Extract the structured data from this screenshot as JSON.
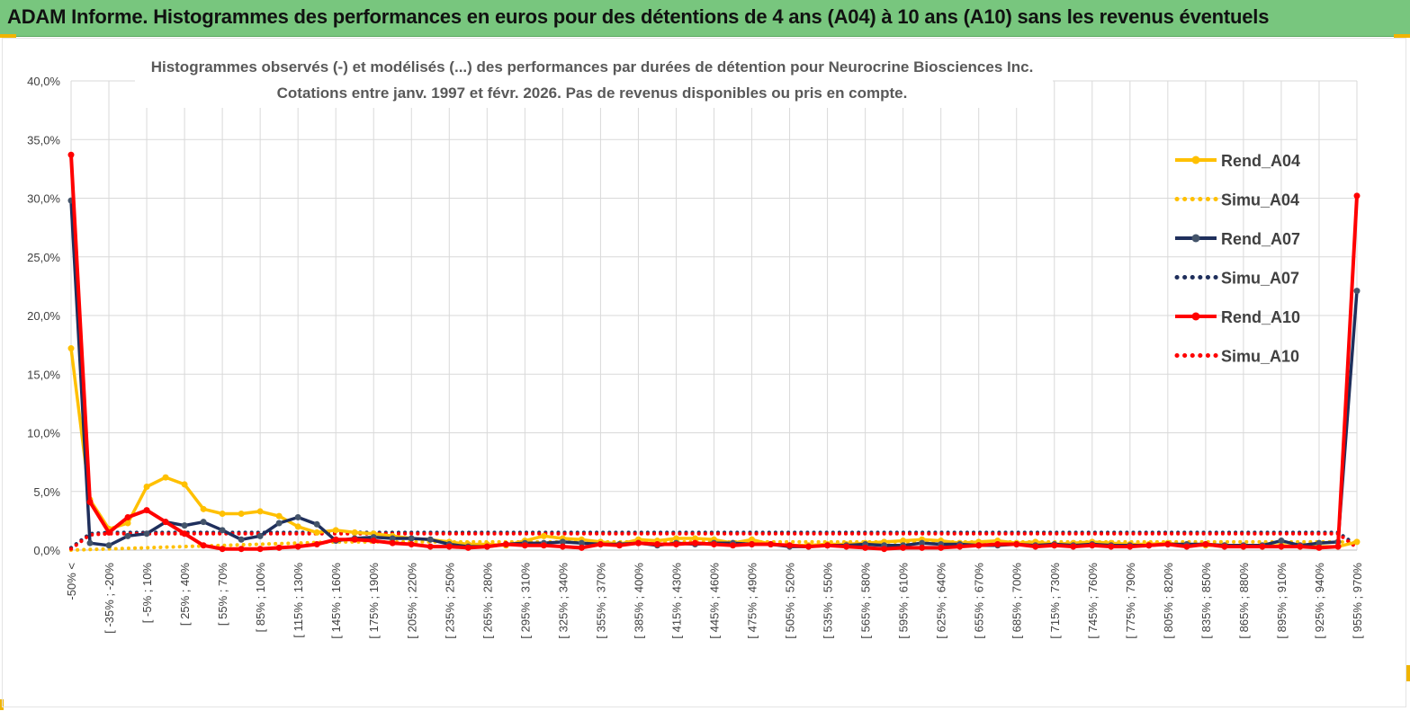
{
  "header": {
    "title": "ADAM Informe. Histogrammes des performances en euros pour des détentions de 4 ans (A04) à 10 ans (A10) sans les revenus éventuels"
  },
  "colors": {
    "banner": "#78c67e",
    "a04": "#ffc000",
    "a07": "#1f2f5c",
    "a10": "#ff0000",
    "grid": "#d9d9d9",
    "accent": "#f0b400"
  },
  "chart_data": {
    "type": "line",
    "title_lines": [
      "Histogrammes observés (-) et modélisés (...) des performances par durées de détention pour Neurocrine Biosciences Inc.",
      "Cotations entre janv. 1997 et févr. 2026. Pas de revenus disponibles ou pris en compte."
    ],
    "ylim": [
      0,
      40
    ],
    "yticks": [
      "0,0%",
      "5,0%",
      "10,0%",
      "15,0%",
      "20,0%",
      "25,0%",
      "30,0%",
      "35,0%",
      "40,0%"
    ],
    "grid": true,
    "legend_position": "right",
    "x_tick_labels": [
      "-50% <",
      "[ -35% ; -20%",
      "[ -5% ; 10%",
      "[ 25% ; 40%",
      "[ 55% ; 70%",
      "[ 85% ; 100%",
      "[ 115% ; 130%",
      "[ 145% ; 160%",
      "[ 175% ; 190%",
      "[ 205% ; 220%",
      "[ 235% ; 250%",
      "[ 265% ; 280%",
      "[ 295% ; 310%",
      "[ 325% ; 340%",
      "[ 355% ; 370%",
      "[ 385% ; 400%",
      "[ 415% ; 430%",
      "[ 445% ; 460%",
      "[ 475% ; 490%",
      "[ 505% ; 520%",
      "[ 535% ; 550%",
      "[ 565% ; 580%",
      "[ 595% ; 610%",
      "[ 625% ; 640%",
      "[ 655% ; 670%",
      "[ 685% ; 700%",
      "[ 715% ; 730%",
      "[ 745% ; 760%",
      "[ 775% ; 790%",
      "[ 805% ; 820%",
      "[ 835% ; 850%",
      "[ 865% ; 880%",
      "[ 895% ; 910%",
      "[ 925% ; 940%",
      "[ 955% ; 970%"
    ],
    "n_bins": 69,
    "series": [
      {
        "name": "Rend_A04",
        "style": "solid",
        "color": "#ffc000",
        "values": [
          17.2,
          4.3,
          1.8,
          2.3,
          5.4,
          6.2,
          5.6,
          3.5,
          3.1,
          3.1,
          3.3,
          2.9,
          2.0,
          1.5,
          1.7,
          1.5,
          1.4,
          1.2,
          1.0,
          0.9,
          0.7,
          0.5,
          0.5,
          0.4,
          0.8,
          1.2,
          1.0,
          0.9,
          0.7,
          0.5,
          0.9,
          0.8,
          1.0,
          1.0,
          0.9,
          0.6,
          0.9,
          0.5,
          0.4,
          0.4,
          0.5,
          0.5,
          0.6,
          0.7,
          0.8,
          0.9,
          0.8,
          0.6,
          0.7,
          0.8,
          0.6,
          0.7,
          0.5,
          0.6,
          0.7,
          0.6,
          0.5,
          0.5,
          0.6,
          0.4,
          0.4,
          0.4,
          0.3,
          0.3,
          0.4,
          0.3,
          0.3,
          0.3,
          0.7
        ]
      },
      {
        "name": "Simu_A04",
        "style": "dotted",
        "color": "#ffc000",
        "values": [
          0.0,
          0.05,
          0.1,
          0.15,
          0.2,
          0.25,
          0.3,
          0.35,
          0.4,
          0.45,
          0.5,
          0.55,
          0.6,
          0.65,
          0.7,
          0.7,
          0.7,
          0.7,
          0.7,
          0.7,
          0.7,
          0.7,
          0.7,
          0.7,
          0.7,
          0.7,
          0.7,
          0.7,
          0.7,
          0.7,
          0.7,
          0.7,
          0.7,
          0.7,
          0.7,
          0.7,
          0.7,
          0.7,
          0.7,
          0.7,
          0.7,
          0.7,
          0.7,
          0.7,
          0.7,
          0.7,
          0.7,
          0.7,
          0.7,
          0.7,
          0.7,
          0.7,
          0.7,
          0.7,
          0.7,
          0.7,
          0.7,
          0.7,
          0.7,
          0.7,
          0.7,
          0.7,
          0.7,
          0.7,
          0.7,
          0.7,
          0.7,
          0.7,
          0.7
        ]
      },
      {
        "name": "Rend_A07",
        "style": "solid",
        "color": "#1f2f5c",
        "values": [
          29.8,
          0.6,
          0.4,
          1.2,
          1.4,
          2.4,
          2.1,
          2.4,
          1.7,
          0.9,
          1.2,
          2.3,
          2.8,
          2.2,
          0.8,
          1.0,
          1.1,
          1.0,
          1.0,
          0.9,
          0.5,
          0.3,
          0.3,
          0.5,
          0.6,
          0.6,
          0.7,
          0.6,
          0.5,
          0.5,
          0.6,
          0.4,
          0.6,
          0.5,
          0.6,
          0.6,
          0.5,
          0.5,
          0.3,
          0.3,
          0.4,
          0.4,
          0.5,
          0.4,
          0.4,
          0.6,
          0.5,
          0.5,
          0.4,
          0.4,
          0.5,
          0.4,
          0.5,
          0.4,
          0.5,
          0.4,
          0.4,
          0.4,
          0.5,
          0.5,
          0.5,
          0.4,
          0.4,
          0.4,
          0.8,
          0.4,
          0.6,
          0.7,
          22.1
        ]
      },
      {
        "name": "Simu_A07",
        "style": "dotted",
        "color": "#1f2f5c",
        "values": [
          0.2,
          1.4,
          1.5,
          1.5,
          1.5,
          1.5,
          1.5,
          1.5,
          1.5,
          1.5,
          1.5,
          1.5,
          1.5,
          1.5,
          1.5,
          1.5,
          1.5,
          1.5,
          1.5,
          1.5,
          1.5,
          1.5,
          1.5,
          1.5,
          1.5,
          1.5,
          1.5,
          1.5,
          1.5,
          1.5,
          1.5,
          1.5,
          1.5,
          1.5,
          1.5,
          1.5,
          1.5,
          1.5,
          1.5,
          1.5,
          1.5,
          1.5,
          1.5,
          1.5,
          1.5,
          1.5,
          1.5,
          1.5,
          1.5,
          1.5,
          1.5,
          1.5,
          1.5,
          1.5,
          1.5,
          1.5,
          1.5,
          1.5,
          1.5,
          1.5,
          1.5,
          1.5,
          1.5,
          1.5,
          1.5,
          1.5,
          1.5,
          1.5,
          0.4
        ]
      },
      {
        "name": "Rend_A10",
        "style": "solid",
        "color": "#ff0000",
        "values": [
          33.7,
          4.1,
          1.5,
          2.8,
          3.4,
          2.4,
          1.4,
          0.4,
          0.1,
          0.1,
          0.1,
          0.2,
          0.3,
          0.5,
          0.9,
          0.9,
          0.8,
          0.6,
          0.5,
          0.3,
          0.3,
          0.2,
          0.3,
          0.5,
          0.4,
          0.4,
          0.3,
          0.2,
          0.5,
          0.4,
          0.6,
          0.5,
          0.5,
          0.6,
          0.5,
          0.4,
          0.5,
          0.5,
          0.4,
          0.3,
          0.4,
          0.3,
          0.2,
          0.1,
          0.2,
          0.2,
          0.2,
          0.3,
          0.4,
          0.5,
          0.5,
          0.3,
          0.4,
          0.3,
          0.4,
          0.3,
          0.3,
          0.4,
          0.5,
          0.3,
          0.5,
          0.3,
          0.3,
          0.3,
          0.3,
          0.3,
          0.2,
          0.3,
          30.2
        ]
      },
      {
        "name": "Simu_A10",
        "style": "dotted",
        "color": "#ff0000",
        "values": [
          0.1,
          1.3,
          1.4,
          1.4,
          1.4,
          1.4,
          1.4,
          1.4,
          1.4,
          1.4,
          1.4,
          1.4,
          1.4,
          1.4,
          1.4,
          1.4,
          1.4,
          1.4,
          1.4,
          1.4,
          1.4,
          1.4,
          1.4,
          1.4,
          1.4,
          1.4,
          1.4,
          1.4,
          1.4,
          1.4,
          1.4,
          1.4,
          1.4,
          1.4,
          1.4,
          1.4,
          1.4,
          1.4,
          1.4,
          1.4,
          1.4,
          1.4,
          1.4,
          1.4,
          1.4,
          1.4,
          1.4,
          1.4,
          1.4,
          1.4,
          1.4,
          1.4,
          1.4,
          1.4,
          1.4,
          1.4,
          1.4,
          1.4,
          1.4,
          1.4,
          1.4,
          1.4,
          1.4,
          1.4,
          1.4,
          1.4,
          1.4,
          1.4,
          0.2
        ]
      }
    ]
  }
}
